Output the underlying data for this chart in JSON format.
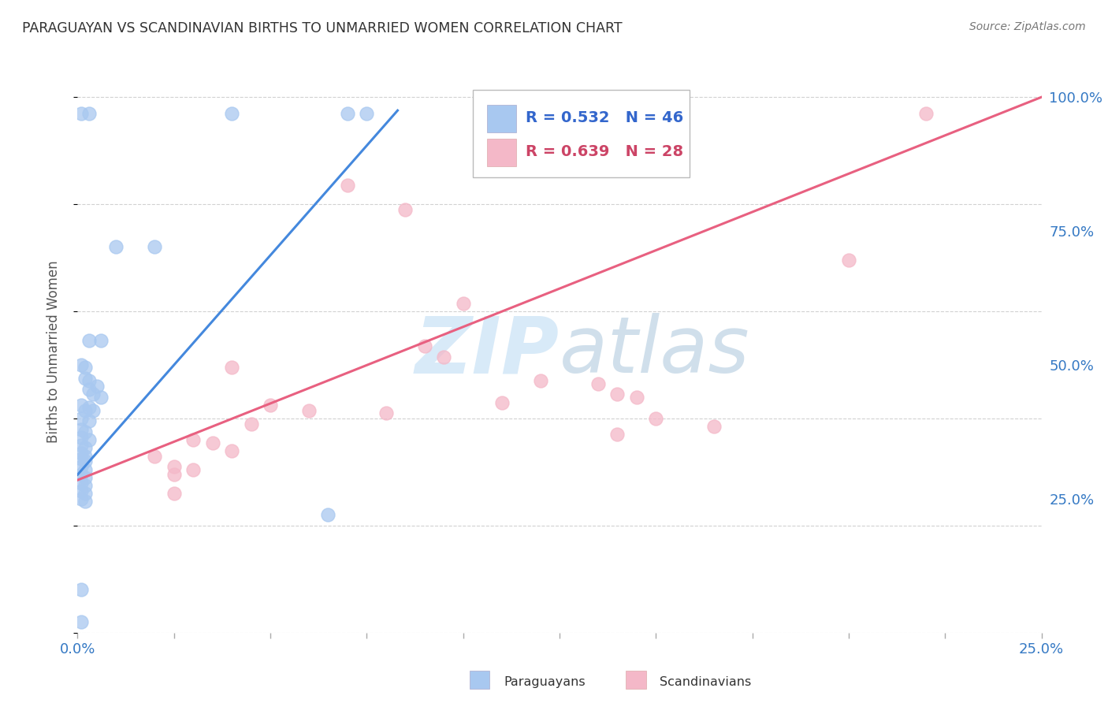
{
  "title": "PARAGUAYAN VS SCANDINAVIAN BIRTHS TO UNMARRIED WOMEN CORRELATION CHART",
  "source": "Source: ZipAtlas.com",
  "ylabel": "Births to Unmarried Women",
  "legend_blue_r": "R = 0.532",
  "legend_blue_n": "N = 46",
  "legend_pink_r": "R = 0.639",
  "legend_pink_n": "N = 28",
  "legend_label_blue": "Paraguayans",
  "legend_label_pink": "Scandinavians",
  "blue_color": "#A8C8F0",
  "pink_color": "#F4B8C8",
  "blue_line_color": "#4488DD",
  "pink_line_color": "#E86080",
  "blue_r_color": "#3366CC",
  "pink_r_color": "#CC4466",
  "blue_dots": [
    [
      0.001,
      0.97
    ],
    [
      0.003,
      0.97
    ],
    [
      0.04,
      0.97
    ],
    [
      0.07,
      0.97
    ],
    [
      0.075,
      0.97
    ],
    [
      0.01,
      0.72
    ],
    [
      0.02,
      0.72
    ],
    [
      0.003,
      0.545
    ],
    [
      0.006,
      0.545
    ],
    [
      0.001,
      0.5
    ],
    [
      0.002,
      0.495
    ],
    [
      0.002,
      0.475
    ],
    [
      0.003,
      0.47
    ],
    [
      0.003,
      0.455
    ],
    [
      0.005,
      0.46
    ],
    [
      0.004,
      0.445
    ],
    [
      0.006,
      0.44
    ],
    [
      0.001,
      0.425
    ],
    [
      0.003,
      0.42
    ],
    [
      0.002,
      0.415
    ],
    [
      0.004,
      0.415
    ],
    [
      0.001,
      0.4
    ],
    [
      0.003,
      0.395
    ],
    [
      0.001,
      0.38
    ],
    [
      0.002,
      0.375
    ],
    [
      0.001,
      0.365
    ],
    [
      0.003,
      0.36
    ],
    [
      0.001,
      0.35
    ],
    [
      0.002,
      0.345
    ],
    [
      0.001,
      0.335
    ],
    [
      0.002,
      0.33
    ],
    [
      0.001,
      0.325
    ],
    [
      0.002,
      0.32
    ],
    [
      0.001,
      0.31
    ],
    [
      0.002,
      0.305
    ],
    [
      0.001,
      0.295
    ],
    [
      0.002,
      0.29
    ],
    [
      0.001,
      0.28
    ],
    [
      0.002,
      0.275
    ],
    [
      0.001,
      0.265
    ],
    [
      0.002,
      0.26
    ],
    [
      0.001,
      0.25
    ],
    [
      0.002,
      0.245
    ],
    [
      0.065,
      0.22
    ],
    [
      0.001,
      0.08
    ],
    [
      0.001,
      0.02
    ]
  ],
  "pink_dots": [
    [
      0.22,
      0.97
    ],
    [
      0.07,
      0.835
    ],
    [
      0.085,
      0.79
    ],
    [
      0.2,
      0.695
    ],
    [
      0.1,
      0.615
    ],
    [
      0.09,
      0.535
    ],
    [
      0.095,
      0.515
    ],
    [
      0.04,
      0.495
    ],
    [
      0.12,
      0.47
    ],
    [
      0.135,
      0.465
    ],
    [
      0.14,
      0.445
    ],
    [
      0.145,
      0.44
    ],
    [
      0.11,
      0.43
    ],
    [
      0.05,
      0.425
    ],
    [
      0.06,
      0.415
    ],
    [
      0.08,
      0.41
    ],
    [
      0.15,
      0.4
    ],
    [
      0.045,
      0.39
    ],
    [
      0.165,
      0.385
    ],
    [
      0.14,
      0.37
    ],
    [
      0.03,
      0.36
    ],
    [
      0.035,
      0.355
    ],
    [
      0.04,
      0.34
    ],
    [
      0.02,
      0.33
    ],
    [
      0.025,
      0.31
    ],
    [
      0.03,
      0.305
    ],
    [
      0.025,
      0.295
    ],
    [
      0.025,
      0.26
    ]
  ],
  "blue_line_x": [
    0.0,
    0.083
  ],
  "blue_line_y": [
    0.295,
    0.975
  ],
  "pink_line_x": [
    0.0,
    0.25
  ],
  "pink_line_y": [
    0.285,
    1.0
  ],
  "watermark_zip": "ZIP",
  "watermark_atlas": "atlas",
  "watermark_color": "#D8EAF8",
  "xlim": [
    0.0,
    0.25
  ],
  "ylim": [
    0.0,
    1.05
  ],
  "xticks": [
    0.0,
    0.025,
    0.05,
    0.075,
    0.1,
    0.125,
    0.15,
    0.175,
    0.2,
    0.225,
    0.25
  ],
  "yticks": [
    0.0,
    0.25,
    0.5,
    0.75,
    1.0
  ],
  "ytick_labels": [
    "",
    "25.0%",
    "50.0%",
    "75.0%",
    "100.0%"
  ]
}
